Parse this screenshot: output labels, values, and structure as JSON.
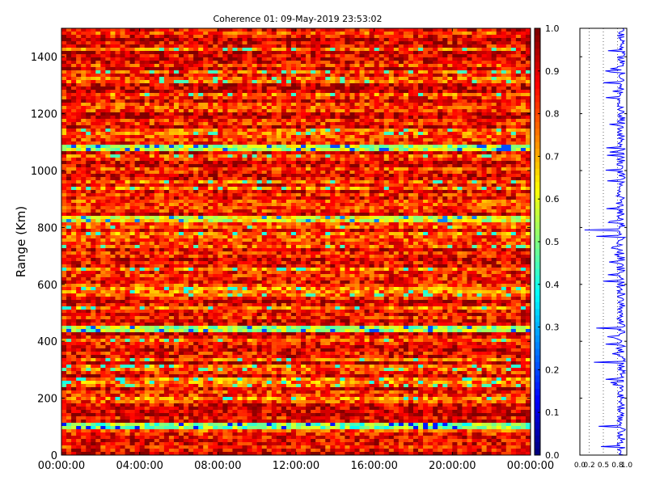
{
  "chart_data": [
    {
      "type": "heatmap",
      "title": "Coherence 01: 09-May-2019 23:53:02",
      "xlabel": "",
      "ylabel": "Range (Km)",
      "x_ticks": [
        "00:00:00",
        "04:00:00",
        "08:00:00",
        "12:00:00",
        "16:00:00",
        "20:00:00",
        "00:00:00"
      ],
      "x_range_hours": [
        0,
        24
      ],
      "y_ticks": [
        0,
        200,
        400,
        600,
        800,
        1000,
        1200,
        1400
      ],
      "ylim": [
        0,
        1500
      ],
      "colormap": "jet",
      "clim": [
        0.0,
        1.0
      ],
      "colorbar_ticks": [
        "0.0",
        "0.1",
        "0.2",
        "0.3",
        "0.4",
        "0.5",
        "0.6",
        "0.7",
        "0.8",
        "0.9",
        "1.0"
      ],
      "low_coherence_bands_km": [
        {
          "range": 100,
          "value": 0.25
        },
        {
          "range": 265,
          "value": 0.5
        },
        {
          "range": 445,
          "value": 0.3
        },
        {
          "range": 580,
          "value": 0.5
        },
        {
          "range": 830,
          "value": 0.35
        },
        {
          "range": 1080,
          "value": 0.3
        }
      ],
      "typical_coherence": 0.85
    },
    {
      "type": "line",
      "xlabel": "",
      "ylabel": "",
      "xlim": [
        0.0,
        1.0
      ],
      "x_ticks": [
        "0.0",
        "0.2",
        "0.5",
        "0.8",
        "1.0"
      ],
      "ylim": [
        0,
        1500
      ],
      "grid_x_dashed": true,
      "profile": [
        {
          "range": 30,
          "value": 0.45
        },
        {
          "range": 100,
          "value": 0.4
        },
        {
          "range": 265,
          "value": 0.55
        },
        {
          "range": 325,
          "value": 0.3
        },
        {
          "range": 390,
          "value": 0.55
        },
        {
          "range": 445,
          "value": 0.35
        },
        {
          "range": 610,
          "value": 0.5
        },
        {
          "range": 770,
          "value": 0.35
        },
        {
          "range": 790,
          "value": 0.1
        },
        {
          "range": 1000,
          "value": 0.55
        },
        {
          "range": 1280,
          "value": 0.7
        },
        {
          "range": 1310,
          "value": 0.5
        },
        {
          "range": 1420,
          "value": 0.6
        }
      ],
      "typical_coherence": 0.88
    }
  ],
  "colors": {
    "series_line": "#0000ff",
    "axis": "#000000",
    "background": "#ffffff"
  }
}
